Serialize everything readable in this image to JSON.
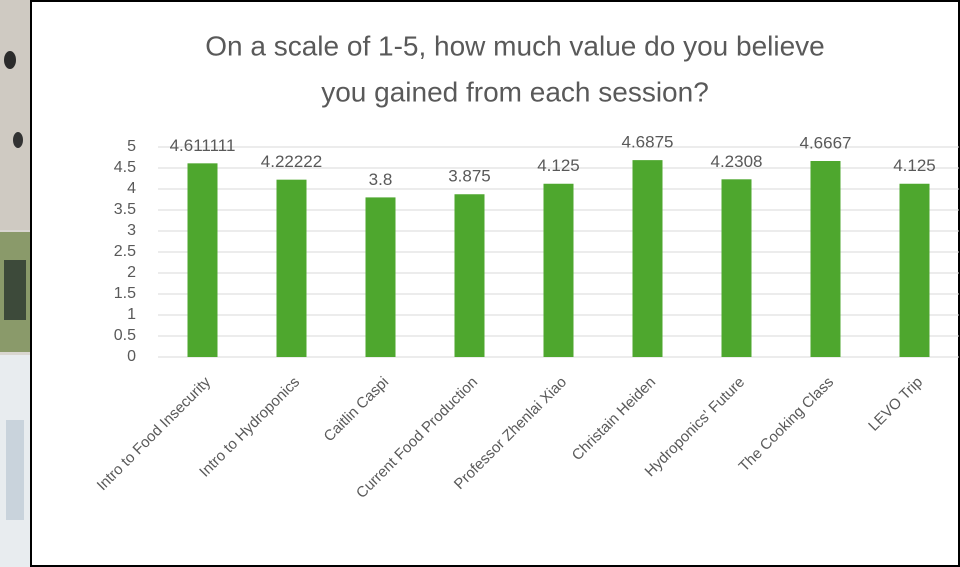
{
  "chart_data": {
    "type": "bar",
    "title": [
      "On a scale of 1-5, how much value do you believe",
      "you gained from each session?"
    ],
    "categories": [
      "Intro to Food Insecurity",
      "Intro to Hydroponics",
      "Caitlin Caspi",
      "Current Food Production",
      "Professor Zhenlai Xiao",
      "Christain Heiden",
      "Hydroponics' Future",
      "The Cooking Class",
      "LEVO Trip"
    ],
    "values": [
      4.611111,
      4.22222,
      3.8,
      3.875,
      4.125,
      4.6875,
      4.2308,
      4.6667,
      4.125
    ],
    "color": "#4ea72e",
    "ylim": [
      0,
      5
    ],
    "yticks": [
      0,
      0.5,
      1,
      1.5,
      2,
      2.5,
      3,
      3.5,
      4,
      4.5,
      5
    ],
    "grid": true
  }
}
